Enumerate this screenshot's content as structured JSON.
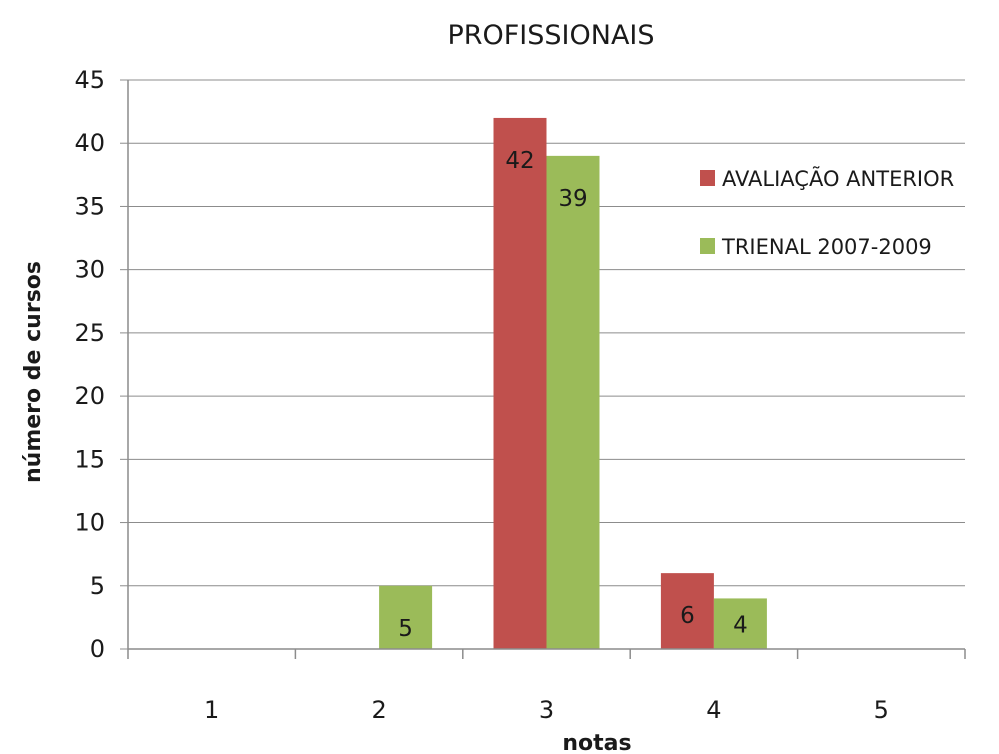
{
  "chart_data": {
    "type": "bar",
    "title": "PROFISSIONAIS",
    "xlabel": "notas",
    "ylabel": "número de cursos",
    "categories": [
      "1",
      "2",
      "3",
      "4",
      "5"
    ],
    "series": [
      {
        "name": "AVALIAÇÃO ANTERIOR",
        "color": "#c0504d",
        "values": [
          0,
          0,
          42,
          6,
          0
        ],
        "labels": [
          "",
          "",
          "42",
          "6",
          ""
        ]
      },
      {
        "name": "TRIENAL 2007-2009",
        "color": "#9bbb59",
        "values": [
          0,
          5,
          39,
          4,
          0
        ],
        "labels": [
          "",
          "5",
          "39",
          "4",
          ""
        ]
      }
    ],
    "ylim": [
      0,
      45
    ],
    "yticks": [
      "0",
      "5",
      "10",
      "15",
      "20",
      "25",
      "30",
      "35",
      "40",
      "45"
    ],
    "grid": true,
    "legend_position": "right"
  }
}
